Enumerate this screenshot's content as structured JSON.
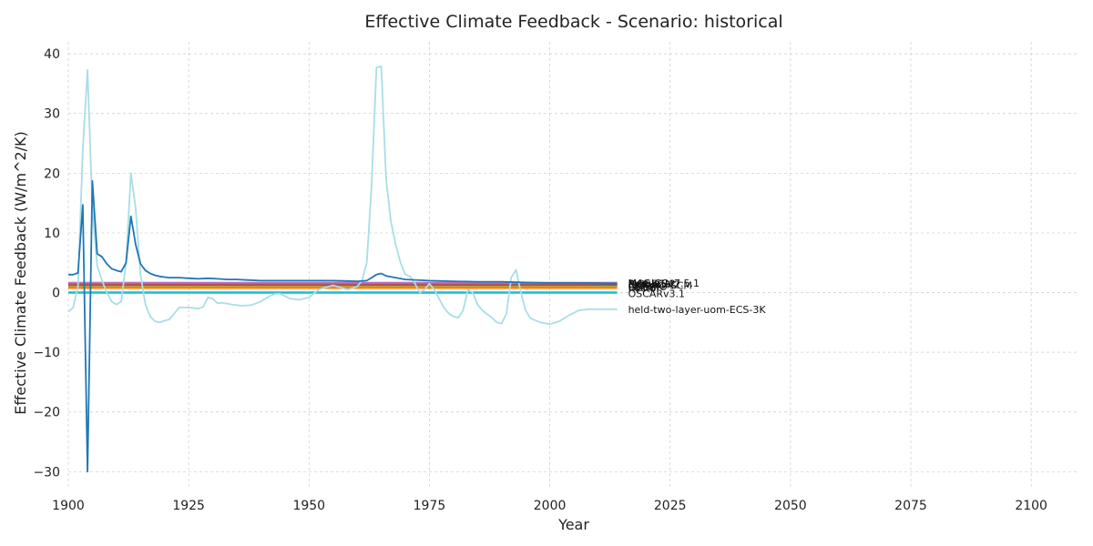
{
  "chart_data": {
    "type": "line",
    "title": "Effective Climate Feedback - Scenario: historical",
    "xlabel": "Year",
    "ylabel": "Effective Climate Feedback (W/m^2/K)",
    "xlim": [
      1900,
      2110
    ],
    "ylim": [
      -33,
      42
    ],
    "xticks": [
      1900,
      1925,
      1950,
      1975,
      2000,
      2025,
      2050,
      2075,
      2100
    ],
    "yticks": [
      -30,
      -20,
      -10,
      0,
      10,
      20,
      30,
      40
    ],
    "grid": true,
    "series": [
      {
        "name": "MAGICCv7.5.1",
        "color": "#9467bd",
        "constant": 1.6,
        "x": [
          1900,
          2014
        ],
        "y": [
          1.6,
          1.6
        ]
      },
      {
        "name": "MCE-v1-2",
        "color": "#e377c2",
        "constant": 1.5,
        "x": [
          1900,
          2014
        ],
        "y": [
          1.5,
          1.5
        ]
      },
      {
        "name": "FaIRv1.6.2",
        "color": "#ff4d6d",
        "constant": 1.4,
        "x": [
          1900,
          2014
        ],
        "y": [
          1.4,
          1.4
        ]
      },
      {
        "name": "CICERO-SCM",
        "color": "#8c564b",
        "constant": 1.2,
        "x": [
          1900,
          2014
        ],
        "y": [
          1.2,
          1.2
        ]
      },
      {
        "name": "ESCIMO",
        "color": "#7f7f7f",
        "constant": 1.0,
        "x": [
          1900,
          2014
        ],
        "y": [
          1.0,
          1.0
        ]
      },
      {
        "name": "GREB",
        "color": "#bcbd22",
        "constant": 0.9,
        "x": [
          1900,
          2014
        ],
        "y": [
          0.9,
          0.9
        ]
      },
      {
        "name": "hector",
        "color": "#ff7f0e",
        "constant": 0.8,
        "x": [
          1900,
          2014
        ],
        "y": [
          0.8,
          0.8
        ]
      },
      {
        "name": "OSCARv3.1",
        "color": "#17becf",
        "constant": 0.0,
        "x": [
          1900,
          2014
        ],
        "y": [
          0.0,
          0.0
        ]
      },
      {
        "name": "held-two-layer-uom-ECS-3K",
        "color": "#a9dde7",
        "x": [
          1900,
          1901,
          1902,
          1903,
          1904,
          1905,
          1906,
          1907,
          1908,
          1909,
          1910,
          1911,
          1912,
          1913,
          1914,
          1915,
          1916,
          1917,
          1918,
          1919,
          1920,
          1921,
          1923,
          1925,
          1927,
          1928,
          1929,
          1930,
          1931,
          1932,
          1934,
          1936,
          1938,
          1940,
          1942,
          1943,
          1944,
          1946,
          1948,
          1950,
          1952,
          1954,
          1955,
          1956,
          1958,
          1960,
          1961,
          1962,
          1963,
          1964,
          1965,
          1966,
          1967,
          1968,
          1969,
          1970,
          1971,
          1972,
          1973,
          1974,
          1975,
          1976,
          1977,
          1978,
          1979,
          1980,
          1981,
          1982,
          1983,
          1984,
          1985,
          1986,
          1988,
          1989,
          1990,
          1991,
          1992,
          1993,
          1994,
          1995,
          1996,
          1998,
          2000,
          2002,
          2004,
          2006,
          2008,
          2010,
          2012,
          2014
        ],
        "y": [
          -3.2,
          -2.5,
          1.0,
          24.0,
          37.3,
          14.0,
          4.5,
          2.0,
          0.0,
          -1.5,
          -2.0,
          -1.5,
          5.0,
          20.0,
          14.0,
          3.0,
          -2.0,
          -4.0,
          -4.8,
          -5.0,
          -4.7,
          -4.5,
          -2.5,
          -2.5,
          -2.7,
          -2.4,
          -0.8,
          -1.0,
          -1.8,
          -1.7,
          -2.0,
          -2.2,
          -2.1,
          -1.5,
          -0.5,
          -0.2,
          -0.2,
          -1.0,
          -1.2,
          -0.8,
          0.5,
          1.0,
          1.2,
          1.0,
          0.5,
          1.0,
          2.0,
          5.0,
          18.0,
          37.7,
          37.9,
          19.0,
          12.0,
          8.0,
          5.0,
          3.0,
          2.7,
          1.5,
          0.0,
          0.5,
          1.5,
          0.5,
          -1.0,
          -2.5,
          -3.5,
          -4.0,
          -4.2,
          -3.0,
          0.5,
          0.0,
          -2.0,
          -3.0,
          -4.2,
          -5.0,
          -5.2,
          -3.5,
          2.5,
          3.8,
          0.0,
          -3.0,
          -4.3,
          -5.0,
          -5.3,
          -4.8,
          -3.8,
          -3.0,
          -2.8,
          -2.8,
          -2.8,
          -2.8
        ]
      },
      {
        "name": "BernSCM",
        "color": "#1f77b4",
        "x": [
          1900,
          1901,
          1902,
          1903,
          1904,
          1905,
          1906,
          1907,
          1908,
          1909,
          1910,
          1911,
          1912,
          1913,
          1914,
          1915,
          1916,
          1917,
          1918,
          1919,
          1920,
          1921,
          1922,
          1923,
          1925,
          1927,
          1929,
          1931,
          1933,
          1935,
          1937,
          1940,
          1945,
          1950,
          1955,
          1960,
          1962,
          1963,
          1964,
          1965,
          1966,
          1968,
          1970,
          1975,
          1980,
          1985,
          1990,
          1995,
          2000,
          2005,
          2014
        ],
        "y": [
          3.0,
          3.0,
          3.3,
          14.7,
          -30.0,
          18.7,
          6.5,
          6.0,
          4.8,
          4.0,
          3.7,
          3.5,
          5.0,
          12.8,
          8.0,
          4.8,
          3.7,
          3.2,
          2.9,
          2.7,
          2.6,
          2.5,
          2.5,
          2.5,
          2.4,
          2.3,
          2.4,
          2.3,
          2.2,
          2.2,
          2.1,
          2.0,
          2.0,
          2.0,
          2.0,
          1.9,
          2.0,
          2.5,
          3.0,
          3.2,
          2.8,
          2.5,
          2.2,
          2.0,
          1.9,
          1.8,
          1.8,
          1.7,
          1.6,
          1.6,
          1.5
        ]
      }
    ],
    "end_labels": [
      "MAGICCv7.5.1",
      "MCE-v1-2",
      "FaIRv1.6.2",
      "CICERO-SCM",
      "ESCIMO",
      "GREB",
      "hector",
      "BernSCM",
      "OSCARv3.1",
      "held-two-layer-uom-ECS-3K"
    ]
  }
}
